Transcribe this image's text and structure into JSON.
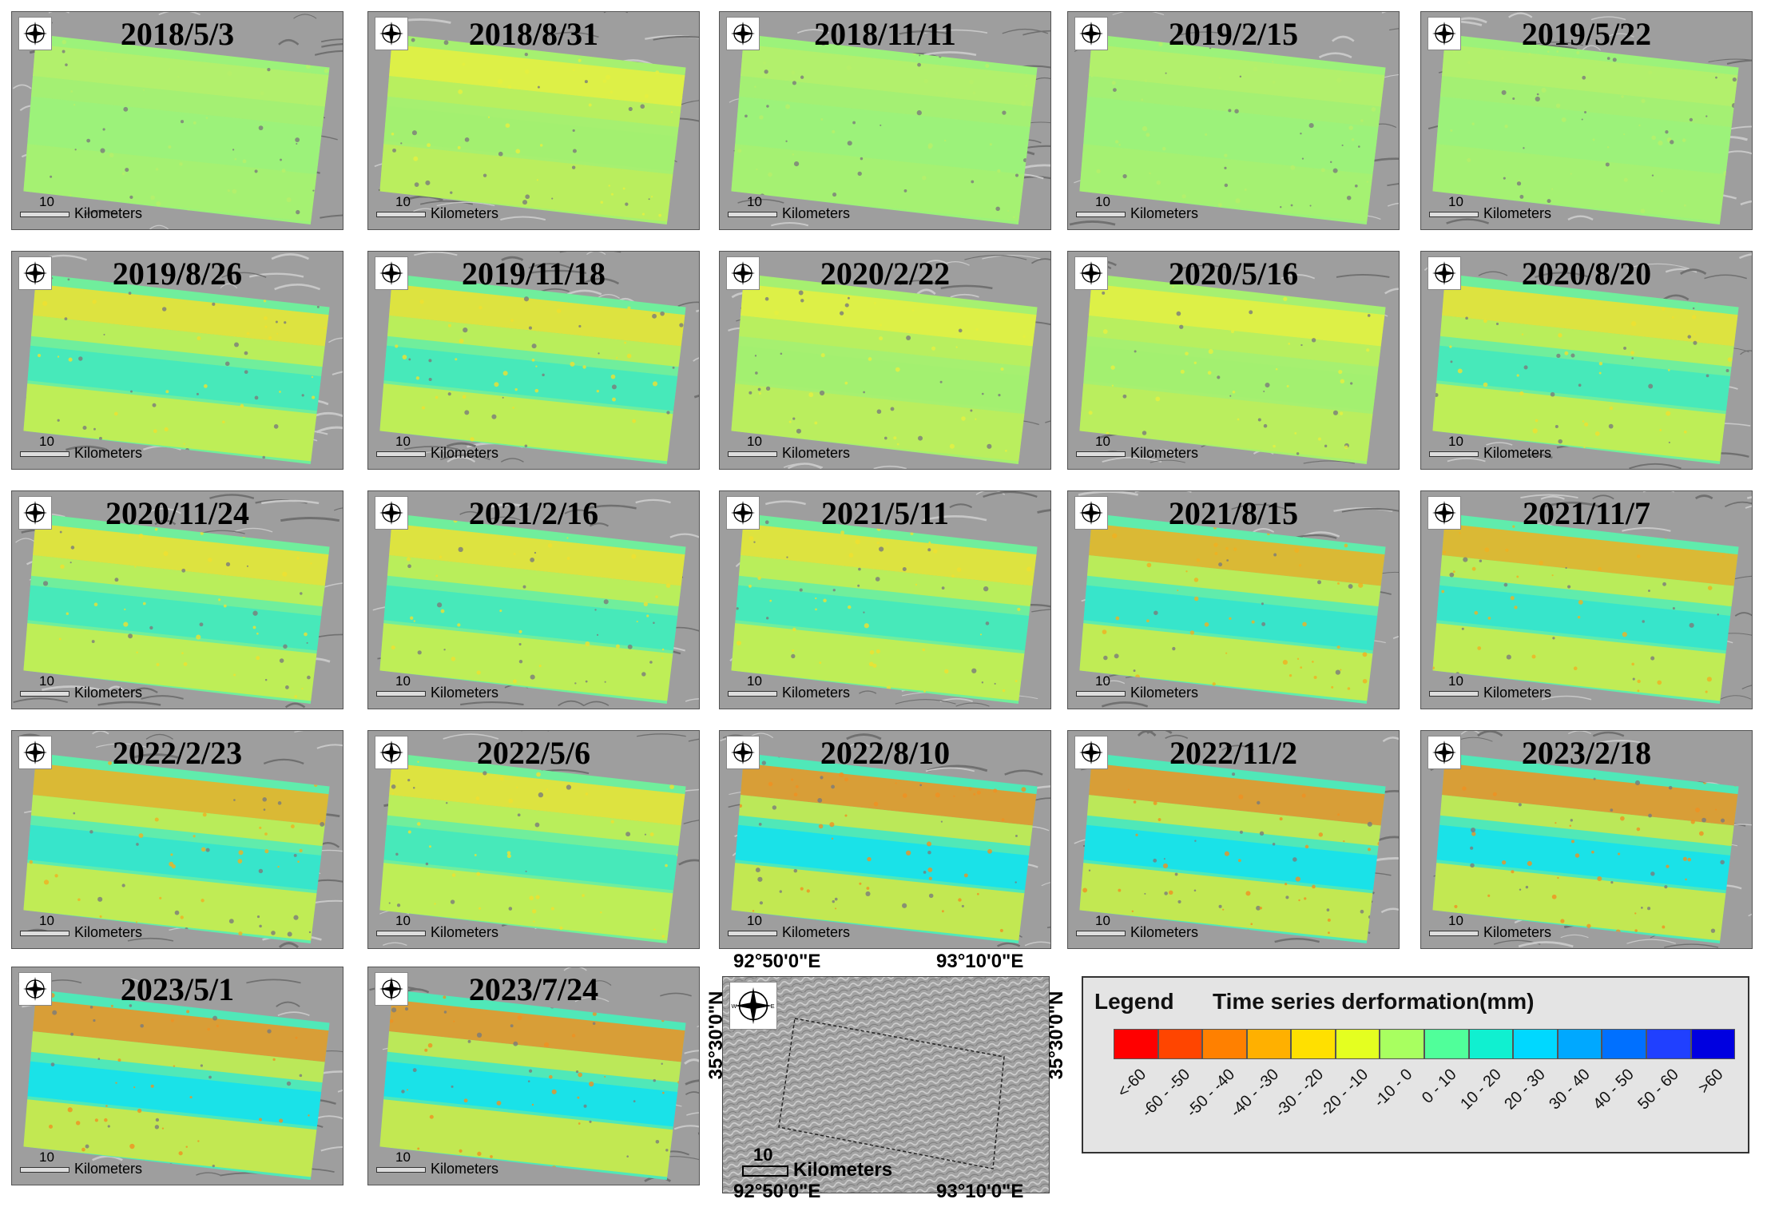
{
  "panels": [
    {
      "date": "2018/5/3",
      "stage": 0
    },
    {
      "date": "2018/8/31",
      "stage": 1
    },
    {
      "date": "2018/11/11",
      "stage": 0
    },
    {
      "date": "2019/2/15",
      "stage": 0
    },
    {
      "date": "2019/5/22",
      "stage": 0
    },
    {
      "date": "2019/8/26",
      "stage": 2
    },
    {
      "date": "2019/11/18",
      "stage": 2
    },
    {
      "date": "2020/2/22",
      "stage": 1
    },
    {
      "date": "2020/5/16",
      "stage": 1
    },
    {
      "date": "2020/8/20",
      "stage": 2
    },
    {
      "date": "2020/11/24",
      "stage": 2
    },
    {
      "date": "2021/2/16",
      "stage": 2
    },
    {
      "date": "2021/5/11",
      "stage": 2
    },
    {
      "date": "2021/8/15",
      "stage": 3
    },
    {
      "date": "2021/11/7",
      "stage": 3
    },
    {
      "date": "2022/2/23",
      "stage": 3
    },
    {
      "date": "2022/5/6",
      "stage": 2
    },
    {
      "date": "2022/8/10",
      "stage": 4
    },
    {
      "date": "2022/11/2",
      "stage": 4
    },
    {
      "date": "2023/2/18",
      "stage": 4
    },
    {
      "date": "2023/5/1",
      "stage": 4
    },
    {
      "date": "2023/7/24",
      "stage": 4
    }
  ],
  "scale": {
    "value": "10",
    "unit": "Kilometers"
  },
  "location_map": {
    "lon_left": "92°50'0\"E",
    "lon_right": "93°10'0\"E",
    "lat": "35°30'0\"N",
    "scale_value": "10",
    "scale_unit": "Kilometers"
  },
  "legend": {
    "title": "Legend",
    "subtitle": "Time series derformation(mm)",
    "classes": [
      {
        "label": "<-60",
        "color": "#ff0000"
      },
      {
        "label": "-60 - -50",
        "color": "#ff4500"
      },
      {
        "label": "-50 - -40",
        "color": "#ff8000"
      },
      {
        "label": "-40 - -30",
        "color": "#ffb000"
      },
      {
        "label": "-30 - -20",
        "color": "#ffe000"
      },
      {
        "label": "-20 - -10",
        "color": "#e4ff20"
      },
      {
        "label": "-10 - 0",
        "color": "#a8ff60"
      },
      {
        "label": "0 - 10",
        "color": "#50ff9a"
      },
      {
        "label": "10 - 20",
        "color": "#10f0d0"
      },
      {
        "label": "20 - 30",
        "color": "#00d8ff"
      },
      {
        "label": "30 - 40",
        "color": "#00a8ff"
      },
      {
        "label": "40 - 50",
        "color": "#0070ff"
      },
      {
        "label": "50 - 60",
        "color": "#2040ff"
      },
      {
        ">60": "",
        "label": ">60",
        "color": "#0000e0"
      }
    ]
  }
}
